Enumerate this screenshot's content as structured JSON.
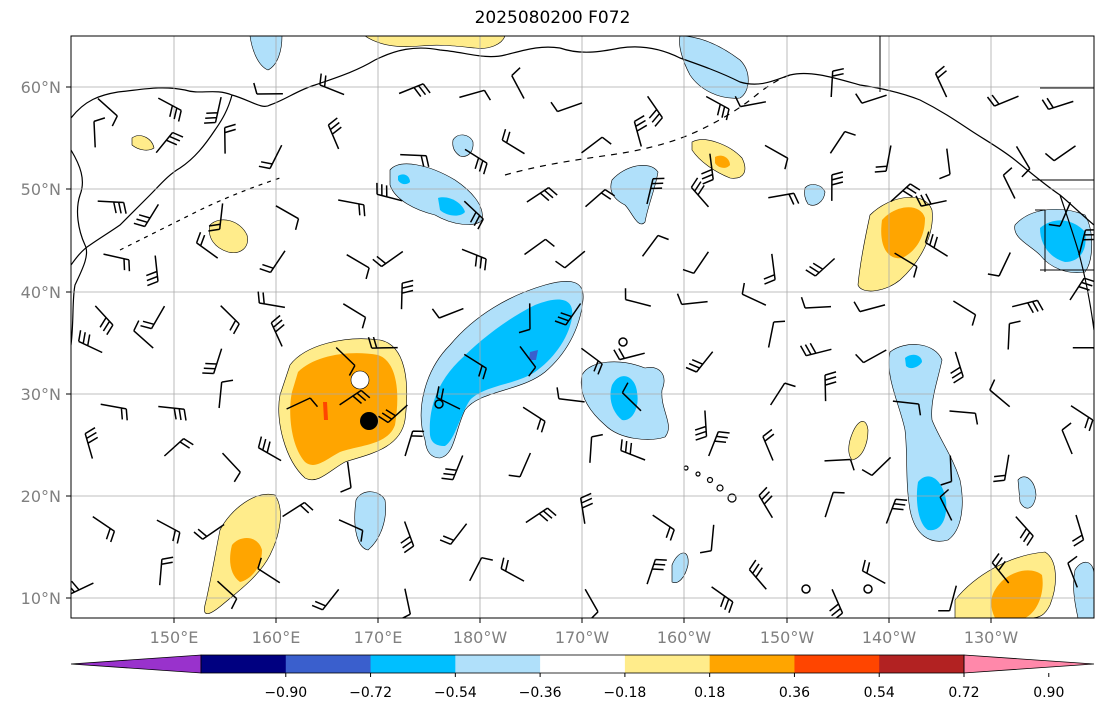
{
  "title": "2025080200 F072",
  "map": {
    "lat_ticks": [
      "10°N",
      "20°N",
      "30°N",
      "40°N",
      "50°N",
      "60°N"
    ],
    "lon_ticks": [
      "150°E",
      "160°E",
      "170°E",
      "180°W",
      "170°W",
      "160°W",
      "150°W",
      "140°W",
      "130°W"
    ],
    "tick_label_color": "#808080",
    "grid": true,
    "features": [
      "coastlines",
      "wind-barbs",
      "shaded-anomaly-contours",
      "storm-position-markers"
    ]
  },
  "colorbar": {
    "tick_labels": [
      "−0.90",
      "−0.72",
      "−0.54",
      "−0.36",
      "−0.18",
      "0.18",
      "0.36",
      "0.54",
      "0.72",
      "0.90"
    ],
    "colors": [
      "#9932cc",
      "#000080",
      "#3a5fcd",
      "#00bfff",
      "#b0e0fa",
      "#ffffff",
      "#ffec8b",
      "#ffa500",
      "#ff4500",
      "#b22222",
      "#ff88aa"
    ],
    "extend": "both"
  }
}
